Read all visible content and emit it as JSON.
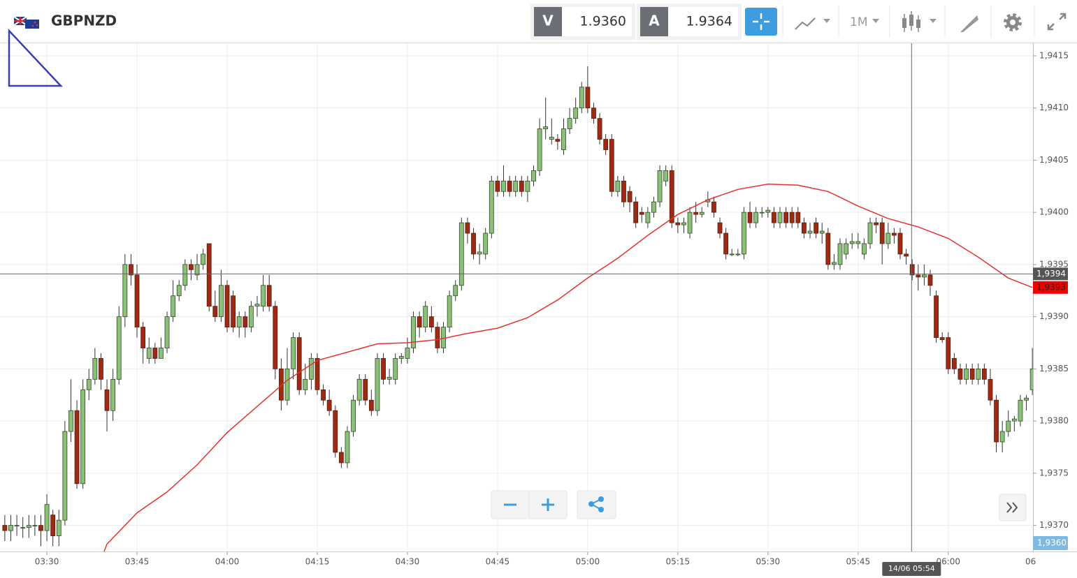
{
  "header": {
    "symbol": "GBPNZD",
    "sell_label": "V",
    "sell_price": "1.9360",
    "buy_label": "A",
    "buy_price": "1.9364",
    "timeframe": "1M"
  },
  "chart_data": {
    "type": "candlestick",
    "up_color": "#8cc079",
    "down_color": "#9e2a14",
    "grid": true,
    "xlim": [
      202.2,
      374.1
    ],
    "ylim": [
      1.93675,
      1.94162
    ],
    "xticks": [
      {
        "value": 210,
        "label": "03:30"
      },
      {
        "value": 225,
        "label": "03:45"
      },
      {
        "value": 240,
        "label": "04:00"
      },
      {
        "value": 255,
        "label": "04:15"
      },
      {
        "value": 270,
        "label": "04:30"
      },
      {
        "value": 285,
        "label": "04:45"
      },
      {
        "value": 300,
        "label": "05:00"
      },
      {
        "value": 315,
        "label": "05:15"
      },
      {
        "value": 330,
        "label": "05:30"
      },
      {
        "value": 345,
        "label": "05:45"
      },
      {
        "value": 360,
        "label": "06:00"
      },
      {
        "value": 375,
        "label": "06"
      }
    ],
    "yticks": [
      {
        "value": 1.937,
        "label": "1,9370"
      },
      {
        "value": 1.9375,
        "label": "1,9375"
      },
      {
        "value": 1.938,
        "label": "1,9380"
      },
      {
        "value": 1.9385,
        "label": "1,9385"
      },
      {
        "value": 1.939,
        "label": "1,9390"
      },
      {
        "value": 1.9395,
        "label": "1,9395"
      },
      {
        "value": 1.94,
        "label": "1,9400"
      },
      {
        "value": 1.9405,
        "label": "1,9405"
      },
      {
        "value": 1.941,
        "label": "1,9410"
      },
      {
        "value": 1.9415,
        "label": "1,9415"
      }
    ],
    "candles": {
      "x": [
        203,
        204,
        205,
        206,
        207,
        208,
        209,
        210,
        211,
        212,
        213,
        214,
        215,
        216,
        217,
        218,
        219,
        220,
        221,
        222,
        223,
        224,
        225,
        226,
        227,
        228,
        229,
        230,
        231,
        232,
        233,
        234,
        235,
        236,
        237,
        238,
        239,
        240,
        241,
        242,
        243,
        244,
        245,
        246,
        247,
        248,
        249,
        250,
        251,
        252,
        253,
        254,
        255,
        256,
        257,
        258,
        259,
        260,
        261,
        262,
        263,
        264,
        265,
        266,
        267,
        268,
        269,
        270,
        271,
        272,
        273,
        274,
        275,
        276,
        277,
        278,
        279,
        280,
        281,
        282,
        283,
        284,
        285,
        286,
        287,
        288,
        289,
        290,
        291,
        292,
        293,
        294,
        295,
        296,
        297,
        298,
        299,
        300,
        301,
        302,
        303,
        304,
        305,
        306,
        307,
        308,
        309,
        310,
        311,
        312,
        313,
        314,
        315,
        316,
        317,
        318,
        319,
        320,
        321,
        322,
        323,
        324,
        325,
        326,
        327,
        328,
        329,
        330,
        331,
        332,
        333,
        334,
        335,
        336,
        337,
        338,
        339,
        340,
        341,
        342,
        343,
        344,
        345,
        346,
        347,
        348,
        349,
        350,
        351,
        352,
        353,
        354,
        355,
        356,
        357,
        358,
        359,
        360,
        361,
        362,
        363,
        364,
        365,
        366,
        367,
        368,
        369,
        370,
        371,
        372,
        373,
        374
      ],
      "open": [
        1.937,
        1.93695,
        1.937,
        1.93698,
        1.93698,
        1.937,
        1.937,
        1.93695,
        1.9371,
        1.9369,
        1.93705,
        1.9379,
        1.9381,
        1.9374,
        1.9383,
        1.9384,
        1.9386,
        1.9383,
        1.9381,
        1.9384,
        1.939,
        1.9395,
        1.9394,
        1.9389,
        1.9386,
        1.9387,
        1.9386,
        1.9387,
        1.939,
        1.9392,
        1.9393,
        1.9395,
        1.9394,
        1.9395,
        1.9397,
        1.9391,
        1.939,
        1.9393,
        1.9392,
        1.9389,
        1.939,
        1.9389,
        1.9391,
        1.9391,
        1.9393,
        1.9391,
        1.9385,
        1.9382,
        1.9385,
        1.9388,
        1.9383,
        1.9384,
        1.9386,
        1.9383,
        1.9382,
        1.9381,
        1.9377,
        1.9376,
        1.9379,
        1.9382,
        1.9384,
        1.9382,
        1.9381,
        1.9386,
        1.9384,
        1.9384,
        1.9386,
        1.9386,
        1.9387,
        1.939,
        1.9389,
        1.939,
        1.9389,
        1.9387,
        1.9389,
        1.9392,
        1.9393,
        1.9399,
        1.9398,
        1.9396,
        1.9396,
        1.9398,
        1.9403,
        1.9402,
        1.9403,
        1.9402,
        1.9403,
        1.9402,
        1.9403,
        1.9404,
        1.9408,
        1.9407,
        1.9407,
        1.9406,
        1.9408,
        1.9409,
        1.941,
        1.9412,
        1.941,
        1.9409,
        1.9407,
        1.9407,
        1.9402,
        1.9403,
        1.9402,
        1.9401,
        1.94,
        1.9399,
        1.94,
        1.9401,
        1.9403,
        1.9404,
        1.9399,
        1.93988,
        1.9398,
        1.94,
        1.93998,
        1.9401,
        1.9401,
        1.9399,
        1.9398,
        1.9396,
        1.9396,
        1.9396,
        1.94,
        1.9399,
        1.94,
        1.94,
        1.94,
        1.9399,
        1.94,
        1.94,
        1.94,
        1.9399,
        1.9398,
        1.9399,
        1.9398,
        1.9398,
        1.9395,
        1.9395,
        1.9396,
        1.9397,
        1.9397,
        1.9396,
        1.9397,
        1.9399,
        1.9399,
        1.9397,
        1.9398,
        1.9398,
        1.9396,
        1.9395,
        1.9394,
        1.93938,
        1.9394,
        1.9392,
        1.9388,
        1.9388,
        1.9386,
        1.9385,
        1.9384,
        1.9385,
        1.9384,
        1.9385,
        1.9384,
        1.9382,
        1.9378,
        1.9379,
        1.938,
        1.938,
        1.9382,
        1.9383
      ],
      "high": [
        1.9371,
        1.9371,
        1.9371,
        1.93708,
        1.9371,
        1.9371,
        1.9371,
        1.9373,
        1.93715,
        1.93715,
        1.938,
        1.9384,
        1.9382,
        1.9384,
        1.9385,
        1.9387,
        1.93865,
        1.9384,
        1.9385,
        1.9391,
        1.9396,
        1.9396,
        1.9395,
        1.93895,
        1.9388,
        1.93875,
        1.9388,
        1.93905,
        1.93935,
        1.93935,
        1.93955,
        1.93955,
        1.9396,
        1.93965,
        1.9397,
        1.93925,
        1.93945,
        1.93935,
        1.93925,
        1.93905,
        1.93905,
        1.93915,
        1.9392,
        1.9394,
        1.9394,
        1.93915,
        1.9386,
        1.9387,
        1.93885,
        1.93885,
        1.93855,
        1.93865,
        1.93865,
        1.93835,
        1.9383,
        1.93815,
        1.93775,
        1.93795,
        1.93825,
        1.93845,
        1.93845,
        1.9383,
        1.93865,
        1.93865,
        1.9385,
        1.93865,
        1.93865,
        1.9388,
        1.93905,
        1.93905,
        1.93915,
        1.9391,
        1.93895,
        1.93895,
        1.93925,
        1.93935,
        1.93995,
        1.93995,
        1.93985,
        1.9397,
        1.93985,
        1.94035,
        1.94035,
        1.94045,
        1.94035,
        1.94035,
        1.94035,
        1.94035,
        1.94045,
        1.9409,
        1.9411,
        1.9409,
        1.94075,
        1.9409,
        1.941,
        1.9411,
        1.94125,
        1.9414,
        1.94105,
        1.94095,
        1.94075,
        1.94075,
        1.94035,
        1.94035,
        1.94025,
        1.94015,
        1.94005,
        1.94005,
        1.94015,
        1.94045,
        1.94045,
        1.94045,
        1.93995,
        1.93995,
        1.94005,
        1.9401,
        1.94005,
        1.9402,
        1.94015,
        1.93995,
        1.93985,
        1.93965,
        1.93965,
        1.94005,
        1.9401,
        1.94005,
        1.94005,
        1.94005,
        1.94005,
        1.94005,
        1.94005,
        1.94005,
        1.94005,
        1.93995,
        1.9399,
        1.93995,
        1.9399,
        1.93985,
        1.9396,
        1.93975,
        1.93975,
        1.9398,
        1.9398,
        1.93975,
        1.93995,
        1.93995,
        1.93995,
        1.9399,
        1.93985,
        1.93985,
        1.93965,
        1.93955,
        1.9395,
        1.9395,
        1.93945,
        1.93925,
        1.93885,
        1.93885,
        1.93865,
        1.93855,
        1.93855,
        1.93855,
        1.93855,
        1.93855,
        1.9385,
        1.93825,
        1.938,
        1.9381,
        1.93805,
        1.93825,
        1.93825,
        1.9387
      ],
      "low": [
        1.93685,
        1.93685,
        1.9369,
        1.93688,
        1.93688,
        1.9369,
        1.9368,
        1.93685,
        1.9368,
        1.9368,
        1.937,
        1.9378,
        1.93735,
        1.93735,
        1.9382,
        1.93835,
        1.9383,
        1.9379,
        1.938,
        1.93835,
        1.9389,
        1.9393,
        1.9388,
        1.93855,
        1.93855,
        1.93855,
        1.9386,
        1.93865,
        1.93895,
        1.93915,
        1.93925,
        1.93935,
        1.93935,
        1.93945,
        1.93905,
        1.93895,
        1.93895,
        1.93885,
        1.93885,
        1.9388,
        1.9388,
        1.93885,
        1.939,
        1.93905,
        1.93905,
        1.9384,
        1.9381,
        1.93815,
        1.9384,
        1.93825,
        1.93825,
        1.9383,
        1.93825,
        1.93815,
        1.93805,
        1.93765,
        1.93755,
        1.93755,
        1.93785,
        1.93815,
        1.93815,
        1.93805,
        1.93805,
        1.93835,
        1.93835,
        1.93835,
        1.93855,
        1.93855,
        1.93865,
        1.9388,
        1.93885,
        1.93885,
        1.93865,
        1.93865,
        1.93885,
        1.93915,
        1.93925,
        1.9397,
        1.93955,
        1.9395,
        1.93955,
        1.93975,
        1.94015,
        1.94015,
        1.94015,
        1.94015,
        1.94015,
        1.9401,
        1.94025,
        1.94035,
        1.9407,
        1.94065,
        1.9406,
        1.94055,
        1.94075,
        1.94085,
        1.94095,
        1.94095,
        1.94085,
        1.94065,
        1.94055,
        1.94015,
        1.94015,
        1.94005,
        1.94,
        1.93985,
        1.9399,
        1.93985,
        1.93995,
        1.94005,
        1.94025,
        1.93985,
        1.9398,
        1.9398,
        1.93975,
        1.9399,
        1.93995,
        1.94005,
        1.93995,
        1.93975,
        1.93955,
        1.93958,
        1.93958,
        1.93955,
        1.93985,
        1.93985,
        1.93995,
        1.93995,
        1.93985,
        1.93985,
        1.93985,
        1.93985,
        1.93985,
        1.93975,
        1.93975,
        1.93975,
        1.9397,
        1.93945,
        1.93945,
        1.93945,
        1.93955,
        1.93965,
        1.93965,
        1.93955,
        1.93965,
        1.9398,
        1.9395,
        1.93965,
        1.9397,
        1.93955,
        1.9395,
        1.93935,
        1.93925,
        1.9393,
        1.9392,
        1.93875,
        1.93875,
        1.93845,
        1.93845,
        1.93835,
        1.93835,
        1.93835,
        1.93835,
        1.93835,
        1.93815,
        1.9377,
        1.9377,
        1.93785,
        1.9379,
        1.93795,
        1.9381,
        1.93825
      ],
      "close": [
        1.93695,
        1.937,
        1.937,
        1.93698,
        1.937,
        1.937,
        1.93695,
        1.9372,
        1.9369,
        1.93705,
        1.9379,
        1.9381,
        1.9374,
        1.9383,
        1.9384,
        1.9386,
        1.9384,
        1.9381,
        1.9384,
        1.939,
        1.9395,
        1.9394,
        1.9389,
        1.9387,
        1.9387,
        1.9386,
        1.9387,
        1.939,
        1.9392,
        1.9393,
        1.9395,
        1.93945,
        1.9395,
        1.9396,
        1.9391,
        1.939,
        1.9393,
        1.9389,
        1.9389,
        1.939,
        1.9389,
        1.9391,
        1.93912,
        1.9393,
        1.9391,
        1.9385,
        1.9382,
        1.9385,
        1.9388,
        1.9383,
        1.9384,
        1.9386,
        1.9383,
        1.9382,
        1.9381,
        1.9377,
        1.9376,
        1.9379,
        1.9382,
        1.9384,
        1.9382,
        1.9381,
        1.9386,
        1.9384,
        1.93842,
        1.9386,
        1.93862,
        1.9387,
        1.939,
        1.9389,
        1.9391,
        1.9389,
        1.9387,
        1.9389,
        1.9392,
        1.9393,
        1.9399,
        1.9398,
        1.9396,
        1.93962,
        1.9398,
        1.9403,
        1.9402,
        1.9403,
        1.9402,
        1.9403,
        1.9402,
        1.9403,
        1.9404,
        1.9408,
        1.94082,
        1.94072,
        1.94068,
        1.9408,
        1.9409,
        1.941,
        1.9412,
        1.941,
        1.9409,
        1.9407,
        1.9406,
        1.9402,
        1.9403,
        1.9401,
        1.9401,
        1.9399,
        1.93998,
        1.94,
        1.9401,
        1.9404,
        1.9404,
        1.9399,
        1.93988,
        1.9399,
        1.94,
        1.93998,
        1.94,
        1.94012,
        1.94,
        1.9398,
        1.9396,
        1.9396,
        1.9396,
        1.94,
        1.9399,
        1.94,
        1.94,
        1.94002,
        1.9399,
        1.94,
        1.9399,
        1.9399,
        1.9399,
        1.9398,
        1.93982,
        1.9398,
        1.93982,
        1.9395,
        1.93952,
        1.9397,
        1.9397,
        1.93972,
        1.93972,
        1.9397,
        1.9399,
        1.93988,
        1.9397,
        1.9398,
        1.93978,
        1.9396,
        1.93958,
        1.9394,
        1.93938,
        1.9394,
        1.9393,
        1.9388,
        1.93878,
        1.9385,
        1.9385,
        1.9384,
        1.9385,
        1.9384,
        1.9385,
        1.9384,
        1.9382,
        1.9378,
        1.9379,
        1.938,
        1.93802,
        1.9382,
        1.93822,
        1.9385
      ]
    },
    "ma": {
      "color": "#e8312f",
      "x": [
        219,
        220,
        225,
        230,
        235,
        240,
        245,
        250,
        255,
        260,
        265,
        270,
        275,
        280,
        285,
        290,
        295,
        300,
        305,
        310,
        315,
        320,
        325,
        330,
        335,
        340,
        345,
        350,
        355,
        360,
        365,
        370,
        374
      ],
      "values": [
        1.93667,
        1.93682,
        1.93712,
        1.93732,
        1.93758,
        1.93789,
        1.93814,
        1.93839,
        1.93858,
        1.93866,
        1.93874,
        1.93875,
        1.93878,
        1.93884,
        1.93889,
        1.93899,
        1.93916,
        1.93937,
        1.93956,
        1.93978,
        1.93998,
        1.94012,
        1.94022,
        1.94027,
        1.94026,
        1.9402,
        1.94006,
        1.93994,
        1.93986,
        1.93975,
        1.93957,
        1.93937,
        1.93928
      ],
      "last": {
        "value": 1.93928,
        "label": "1,9393"
      }
    },
    "crosshair": {
      "x": {
        "value": 353.9,
        "label": "14/06 05:54"
      },
      "y": {
        "value": 1.93941,
        "label": "1,9394"
      }
    },
    "bid": {
      "value": 1.936,
      "label": "1,9360"
    }
  }
}
